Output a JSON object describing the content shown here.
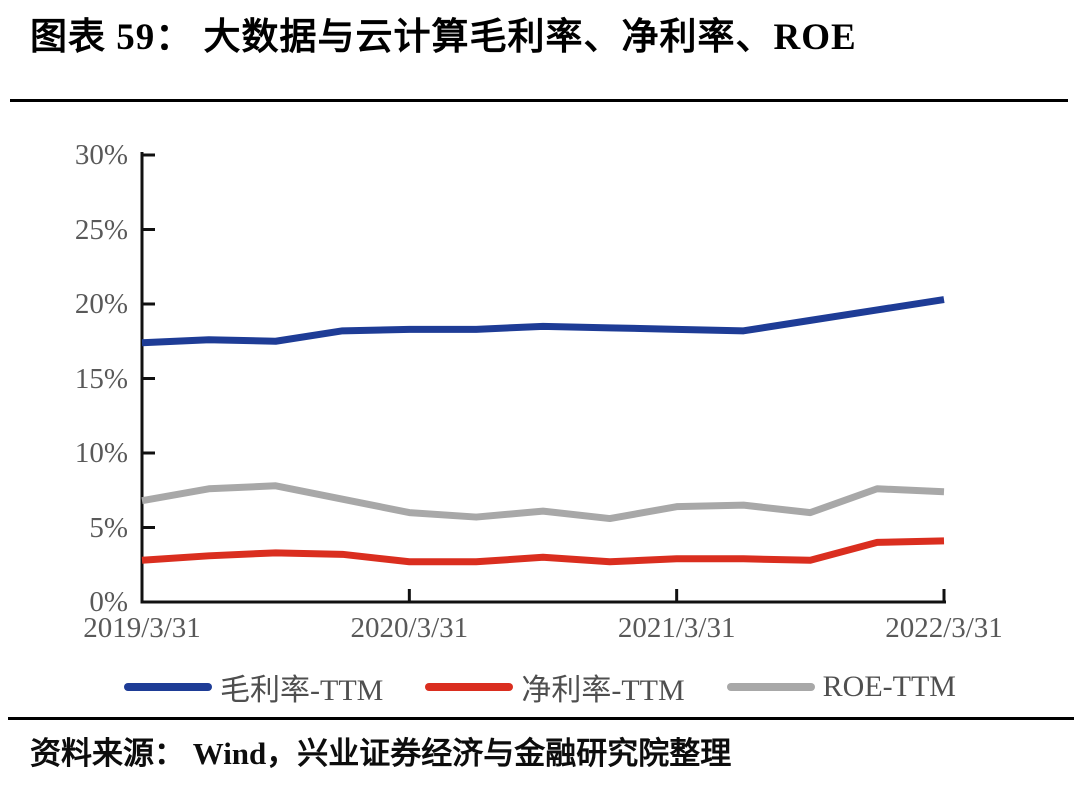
{
  "figure": {
    "title": "图表 59： 大数据与云计算毛利率、净利率、ROE",
    "source": "资料来源： Wind，兴业证券经济与金融研究院整理"
  },
  "chart_data": {
    "type": "line",
    "title": "大数据与云计算毛利率、净利率、ROE",
    "x": [
      "2019/3/31",
      "2019/6/30",
      "2019/9/30",
      "2019/12/31",
      "2020/3/31",
      "2020/6/30",
      "2020/9/30",
      "2020/12/31",
      "2021/3/31",
      "2021/6/30",
      "2021/9/30",
      "2021/12/31",
      "2022/3/31"
    ],
    "x_tick_labels": [
      "2019/3/31",
      "2020/3/31",
      "2021/3/31",
      "2022/3/31"
    ],
    "x_tick_indices": [
      0,
      4,
      8,
      12
    ],
    "y_ticks": [
      {
        "value": 0,
        "label": "0%"
      },
      {
        "value": 5,
        "label": "5%"
      },
      {
        "value": 10,
        "label": "10%"
      },
      {
        "value": 15,
        "label": "15%"
      },
      {
        "value": 20,
        "label": "20%"
      },
      {
        "value": 25,
        "label": "25%"
      },
      {
        "value": 30,
        "label": "30%"
      }
    ],
    "ylim": [
      0,
      30
    ],
    "grid": false,
    "legend_position": "bottom",
    "axis_color": "#111111",
    "tick_label_color": "#595959",
    "series": [
      {
        "name": "毛利率-TTM",
        "color": "#1E3C96",
        "values": [
          17.4,
          17.6,
          17.5,
          18.2,
          18.3,
          18.3,
          18.5,
          18.4,
          18.3,
          18.2,
          18.9,
          19.6,
          20.3
        ]
      },
      {
        "name": "净利率-TTM",
        "color": "#DA2E1F",
        "values": [
          2.8,
          3.1,
          3.3,
          3.2,
          2.7,
          2.7,
          3.0,
          2.7,
          2.9,
          2.9,
          2.8,
          4.0,
          4.1
        ]
      },
      {
        "name": "ROE-TTM",
        "color": "#A8A8A8",
        "values": [
          6.8,
          7.6,
          7.8,
          6.9,
          6.0,
          5.7,
          6.1,
          5.6,
          6.4,
          6.5,
          6.0,
          7.6,
          7.4
        ]
      }
    ]
  }
}
